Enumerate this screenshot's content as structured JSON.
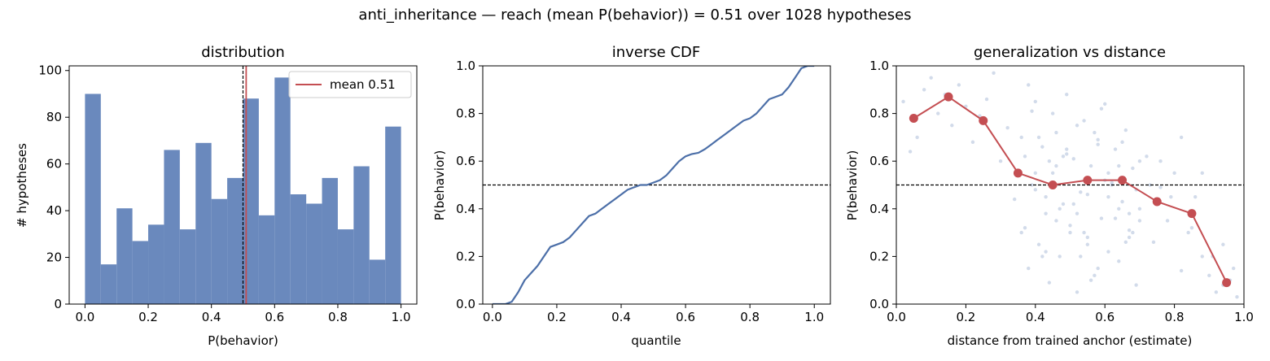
{
  "suptitle": "anti_inheritance  —  reach (mean P(behavior)) = 0.51  over 1028 hypotheses",
  "colors": {
    "hist": "#6a89bd",
    "line": "#4c6fa8",
    "mean": "#c44e52",
    "scatter": "#b4c3dc",
    "bin": "#c44e52"
  },
  "chart_data": [
    {
      "type": "bar",
      "title": "distribution",
      "xlabel": "P(behavior)",
      "ylabel": "# hypotheses",
      "xlim": [
        -0.05,
        1.05
      ],
      "ylim": [
        0,
        102
      ],
      "xticks": [
        0.0,
        0.2,
        0.4,
        0.6,
        0.8,
        1.0
      ],
      "yticks": [
        0,
        20,
        40,
        60,
        80,
        100
      ],
      "bin_edges": [
        0.0,
        0.05,
        0.1,
        0.15,
        0.2,
        0.25,
        0.3,
        0.35,
        0.4,
        0.45,
        0.5,
        0.55,
        0.6,
        0.65,
        0.7,
        0.75,
        0.8,
        0.85,
        0.9,
        0.95,
        1.0
      ],
      "values": [
        90,
        17,
        41,
        27,
        34,
        66,
        32,
        69,
        45,
        54,
        88,
        38,
        97,
        47,
        43,
        54,
        32,
        59,
        19,
        76
      ],
      "mean": 0.51,
      "reference_line": 0.5,
      "legend": {
        "label": "mean 0.51",
        "placement": "top-right"
      }
    },
    {
      "type": "line",
      "title": "inverse CDF",
      "xlabel": "quantile",
      "ylabel": "P(behavior)",
      "xlim": [
        -0.03,
        1.05
      ],
      "ylim": [
        0,
        1.0
      ],
      "xticks": [
        0.0,
        0.2,
        0.4,
        0.6,
        0.8,
        1.0
      ],
      "yticks": [
        0.0,
        0.2,
        0.4,
        0.6,
        0.8,
        1.0
      ],
      "reference_line": 0.5,
      "x": [
        0.0,
        0.02,
        0.04,
        0.06,
        0.08,
        0.1,
        0.12,
        0.14,
        0.16,
        0.18,
        0.2,
        0.22,
        0.24,
        0.26,
        0.28,
        0.3,
        0.32,
        0.34,
        0.36,
        0.38,
        0.4,
        0.42,
        0.44,
        0.46,
        0.48,
        0.5,
        0.52,
        0.54,
        0.56,
        0.58,
        0.6,
        0.62,
        0.64,
        0.66,
        0.68,
        0.7,
        0.72,
        0.74,
        0.76,
        0.78,
        0.8,
        0.82,
        0.84,
        0.86,
        0.88,
        0.9,
        0.92,
        0.94,
        0.96,
        0.98,
        1.0
      ],
      "y": [
        0.0,
        0.0,
        0.0,
        0.01,
        0.05,
        0.1,
        0.13,
        0.16,
        0.2,
        0.24,
        0.25,
        0.26,
        0.28,
        0.31,
        0.34,
        0.37,
        0.38,
        0.4,
        0.42,
        0.44,
        0.46,
        0.48,
        0.49,
        0.5,
        0.5,
        0.51,
        0.52,
        0.54,
        0.57,
        0.6,
        0.62,
        0.63,
        0.635,
        0.65,
        0.67,
        0.69,
        0.71,
        0.73,
        0.75,
        0.77,
        0.78,
        0.8,
        0.83,
        0.86,
        0.87,
        0.88,
        0.91,
        0.95,
        0.99,
        1.0,
        1.0
      ]
    },
    {
      "type": "scatter",
      "title": "generalization vs distance",
      "xlabel": "distance from trained anchor (estimate)",
      "ylabel": "P(behavior)",
      "xlim": [
        0,
        1.0
      ],
      "ylim": [
        0,
        1.0
      ],
      "xticks": [
        0.0,
        0.2,
        0.4,
        0.6,
        0.8,
        1.0
      ],
      "yticks": [
        0.0,
        0.2,
        0.4,
        0.6,
        0.8,
        1.0
      ],
      "reference_line": 0.5,
      "binned_means": {
        "x": [
          0.05,
          0.15,
          0.25,
          0.35,
          0.45,
          0.55,
          0.65,
          0.75,
          0.85,
          0.95
        ],
        "y": [
          0.78,
          0.87,
          0.77,
          0.55,
          0.5,
          0.52,
          0.52,
          0.43,
          0.38,
          0.09
        ]
      },
      "points": {
        "x": [
          0.02,
          0.04,
          0.06,
          0.08,
          0.1,
          0.12,
          0.14,
          0.16,
          0.18,
          0.2,
          0.22,
          0.24,
          0.26,
          0.28,
          0.3,
          0.32,
          0.34,
          0.36,
          0.37,
          0.38,
          0.39,
          0.4,
          0.41,
          0.42,
          0.43,
          0.44,
          0.45,
          0.46,
          0.47,
          0.48,
          0.49,
          0.5,
          0.51,
          0.52,
          0.53,
          0.54,
          0.55,
          0.56,
          0.57,
          0.58,
          0.59,
          0.6,
          0.61,
          0.62,
          0.63,
          0.64,
          0.65,
          0.66,
          0.67,
          0.68,
          0.69,
          0.7,
          0.72,
          0.74,
          0.76,
          0.78,
          0.8,
          0.82,
          0.84,
          0.86,
          0.88,
          0.9,
          0.92,
          0.94,
          0.96,
          0.98,
          0.38,
          0.41,
          0.44,
          0.47,
          0.5,
          0.53,
          0.56,
          0.59,
          0.62,
          0.65,
          0.68,
          0.4,
          0.43,
          0.46,
          0.49,
          0.52,
          0.55,
          0.58,
          0.61,
          0.64,
          0.67,
          0.7,
          0.36,
          0.39,
          0.42,
          0.45,
          0.48,
          0.51,
          0.54,
          0.57,
          0.6,
          0.63,
          0.66,
          0.69,
          0.37,
          0.4,
          0.43,
          0.46,
          0.49,
          0.52,
          0.55,
          0.58,
          0.61,
          0.64,
          0.67,
          0.7,
          0.73,
          0.76,
          0.79,
          0.82,
          0.85,
          0.88,
          0.91,
          0.94,
          0.97
        ],
        "y": [
          0.85,
          0.64,
          0.7,
          0.9,
          0.95,
          0.8,
          0.88,
          0.75,
          0.92,
          0.83,
          0.68,
          0.79,
          0.86,
          0.97,
          0.6,
          0.74,
          0.44,
          0.3,
          0.62,
          0.15,
          0.81,
          0.48,
          0.25,
          0.66,
          0.38,
          0.09,
          0.55,
          0.72,
          0.2,
          0.42,
          0.88,
          0.33,
          0.61,
          0.05,
          0.47,
          0.77,
          0.28,
          0.58,
          0.12,
          0.69,
          0.36,
          0.84,
          0.22,
          0.51,
          0.65,
          0.18,
          0.43,
          0.73,
          0.31,
          0.57,
          0.08,
          0.4,
          0.62,
          0.26,
          0.49,
          0.35,
          0.55,
          0.14,
          0.3,
          0.45,
          0.2,
          0.12,
          0.05,
          0.25,
          0.1,
          0.03,
          0.92,
          0.7,
          0.6,
          0.4,
          0.3,
          0.2,
          0.1,
          0.82,
          0.5,
          0.68,
          0.3,
          0.55,
          0.45,
          0.35,
          0.65,
          0.75,
          0.25,
          0.15,
          0.45,
          0.58,
          0.38,
          0.6,
          0.7,
          0.5,
          0.2,
          0.8,
          0.62,
          0.42,
          0.3,
          0.72,
          0.52,
          0.36,
          0.26,
          0.48,
          0.32,
          0.85,
          0.22,
          0.58,
          0.63,
          0.38,
          0.46,
          0.67,
          0.55,
          0.4,
          0.28,
          0.35,
          0.5,
          0.6,
          0.45,
          0.7,
          0.32,
          0.55,
          0.2,
          0.08,
          0.15
        ]
      }
    }
  ]
}
